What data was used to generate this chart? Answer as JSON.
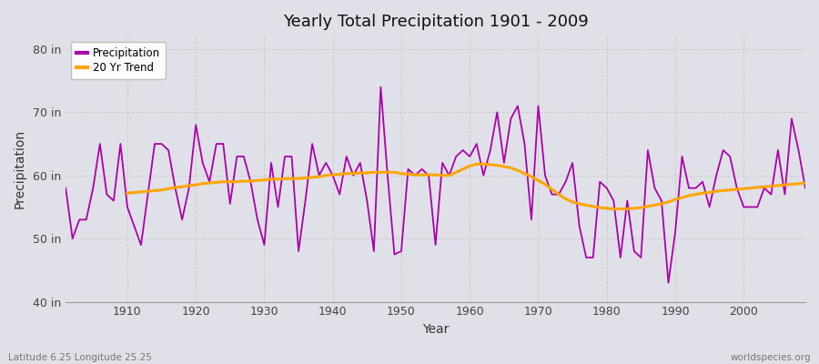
{
  "title": "Yearly Total Precipitation 1901 - 2009",
  "xlabel": "Year",
  "ylabel": "Precipitation",
  "footnote_left": "Latitude 6.25 Longitude 25.25",
  "footnote_right": "worldspecies.org",
  "ylim": [
    40,
    82
  ],
  "yticks": [
    40,
    50,
    60,
    70,
    80
  ],
  "ytick_labels": [
    "40 in",
    "50 in",
    "60 in",
    "70 in",
    "80 in"
  ],
  "xticks": [
    1910,
    1920,
    1930,
    1940,
    1950,
    1960,
    1970,
    1980,
    1990,
    2000
  ],
  "bg_color": "#e0e0e8",
  "plot_bg_color": "#e0e0e8",
  "line_color_precip": "#aa00aa",
  "line_color_trend": "#FFA500",
  "legend_precip": "Precipitation",
  "legend_trend": "20 Yr Trend",
  "years": [
    1901,
    1902,
    1903,
    1904,
    1905,
    1906,
    1907,
    1908,
    1909,
    1910,
    1911,
    1912,
    1913,
    1914,
    1915,
    1916,
    1917,
    1918,
    1919,
    1920,
    1921,
    1922,
    1923,
    1924,
    1925,
    1926,
    1927,
    1928,
    1929,
    1930,
    1931,
    1932,
    1933,
    1934,
    1935,
    1936,
    1937,
    1938,
    1939,
    1940,
    1941,
    1942,
    1943,
    1944,
    1945,
    1946,
    1947,
    1948,
    1949,
    1950,
    1951,
    1952,
    1953,
    1954,
    1955,
    1956,
    1957,
    1958,
    1959,
    1960,
    1961,
    1962,
    1963,
    1964,
    1965,
    1966,
    1967,
    1968,
    1969,
    1970,
    1971,
    1972,
    1973,
    1974,
    1975,
    1976,
    1977,
    1978,
    1979,
    1980,
    1981,
    1982,
    1983,
    1984,
    1985,
    1986,
    1987,
    1988,
    1989,
    1990,
    1991,
    1992,
    1993,
    1994,
    1995,
    1996,
    1997,
    1998,
    1999,
    2000,
    2001,
    2002,
    2003,
    2004,
    2005,
    2006,
    2007,
    2008,
    2009
  ],
  "precip": [
    58.0,
    50.0,
    53.0,
    53.0,
    58.0,
    65.0,
    57.0,
    56.0,
    65.0,
    55.0,
    52.0,
    49.0,
    57.0,
    65.0,
    65.0,
    64.0,
    58.0,
    53.0,
    58.0,
    68.0,
    62.0,
    59.0,
    65.0,
    65.0,
    55.5,
    63.0,
    63.0,
    59.0,
    53.0,
    49.0,
    62.0,
    55.0,
    63.0,
    63.0,
    48.0,
    56.0,
    65.0,
    60.0,
    62.0,
    60.0,
    57.0,
    63.0,
    60.0,
    62.0,
    56.0,
    48.0,
    74.0,
    60.0,
    47.5,
    48.0,
    61.0,
    60.0,
    61.0,
    60.0,
    49.0,
    62.0,
    60.0,
    63.0,
    64.0,
    63.0,
    65.0,
    60.0,
    64.0,
    70.0,
    62.0,
    69.0,
    71.0,
    65.0,
    53.0,
    71.0,
    60.0,
    57.0,
    57.0,
    59.0,
    62.0,
    52.0,
    47.0,
    47.0,
    59.0,
    58.0,
    56.0,
    47.0,
    56.0,
    48.0,
    47.0,
    64.0,
    58.0,
    56.0,
    43.0,
    51.0,
    63.0,
    58.0,
    58.0,
    59.0,
    55.0,
    60.0,
    64.0,
    63.0,
    58.0,
    55.0,
    55.0,
    55.0,
    58.0,
    57.0,
    64.0,
    57.0,
    69.0,
    64.0,
    58.0
  ],
  "trend_years": [
    1910,
    1911,
    1912,
    1913,
    1914,
    1915,
    1916,
    1917,
    1918,
    1919,
    1920,
    1921,
    1922,
    1923,
    1924,
    1925,
    1926,
    1927,
    1928,
    1929,
    1930,
    1931,
    1932,
    1933,
    1934,
    1935,
    1936,
    1937,
    1938,
    1939,
    1940,
    1941,
    1942,
    1943,
    1944,
    1945,
    1946,
    1947,
    1948,
    1949,
    1950,
    1951,
    1952,
    1953,
    1954,
    1955,
    1956,
    1957,
    1958,
    1959,
    1960,
    1961,
    1962,
    1963,
    1964,
    1965,
    1966,
    1967,
    1968,
    1969,
    1970,
    1971,
    1972,
    1973,
    1974,
    1975,
    1976,
    1977,
    1978,
    1979,
    1980,
    1981,
    1982,
    1983,
    1984,
    1985,
    1986,
    1987,
    1988,
    1989,
    1990,
    1991,
    1992,
    1993,
    1994,
    1995,
    1996,
    1997,
    1998,
    1999,
    2000,
    2001,
    2002,
    2003,
    2004,
    2005,
    2006,
    2007,
    2008,
    2009
  ],
  "trend": [
    57.2,
    57.3,
    57.4,
    57.5,
    57.6,
    57.7,
    57.9,
    58.1,
    58.2,
    58.4,
    58.5,
    58.7,
    58.8,
    58.9,
    59.0,
    59.0,
    59.0,
    59.1,
    59.1,
    59.2,
    59.3,
    59.4,
    59.4,
    59.5,
    59.5,
    59.5,
    59.6,
    59.7,
    59.8,
    60.0,
    60.1,
    60.2,
    60.3,
    60.3,
    60.4,
    60.4,
    60.5,
    60.5,
    60.5,
    60.5,
    60.3,
    60.2,
    60.1,
    60.1,
    60.1,
    60.1,
    60.0,
    60.0,
    60.5,
    61.0,
    61.5,
    61.8,
    61.8,
    61.7,
    61.6,
    61.4,
    61.2,
    60.8,
    60.3,
    59.8,
    59.2,
    58.6,
    57.8,
    57.0,
    56.3,
    55.8,
    55.5,
    55.3,
    55.1,
    54.9,
    54.8,
    54.7,
    54.7,
    54.7,
    54.8,
    54.9,
    55.1,
    55.3,
    55.5,
    55.8,
    56.2,
    56.5,
    56.8,
    57.0,
    57.2,
    57.3,
    57.5,
    57.6,
    57.7,
    57.8,
    57.9,
    58.0,
    58.1,
    58.2,
    58.3,
    58.4,
    58.5,
    58.6,
    58.7,
    58.8
  ]
}
